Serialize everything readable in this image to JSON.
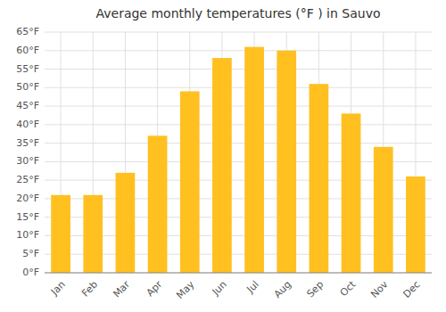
{
  "chart_data": {
    "type": "bar",
    "title": "Average monthly temperatures (°F ) in Sauvo",
    "categories": [
      "Jan",
      "Feb",
      "Mar",
      "Apr",
      "May",
      "Jun",
      "Jul",
      "Aug",
      "Sep",
      "Oct",
      "Nov",
      "Dec"
    ],
    "values": [
      21,
      21,
      27,
      37,
      49,
      58,
      61,
      60,
      51,
      43,
      34,
      26
    ],
    "color": "#FFC020",
    "ylim": [
      0,
      65
    ],
    "yticks": [
      {
        "value": 0,
        "label": "0°F"
      },
      {
        "value": 5,
        "label": "5°F"
      },
      {
        "value": 10,
        "label": "10°F"
      },
      {
        "value": 15,
        "label": "15°F"
      },
      {
        "value": 20,
        "label": "20°F"
      },
      {
        "value": 25,
        "label": "25°F"
      },
      {
        "value": 30,
        "label": "30°F"
      },
      {
        "value": 35,
        "label": "35°F"
      },
      {
        "value": 40,
        "label": "40°F"
      },
      {
        "value": 45,
        "label": "45°F"
      },
      {
        "value": 50,
        "label": "50°F"
      },
      {
        "value": 55,
        "label": "55°F"
      },
      {
        "value": 60,
        "label": "60°F"
      },
      {
        "value": 65,
        "label": "65°F"
      }
    ],
    "grid": true
  }
}
